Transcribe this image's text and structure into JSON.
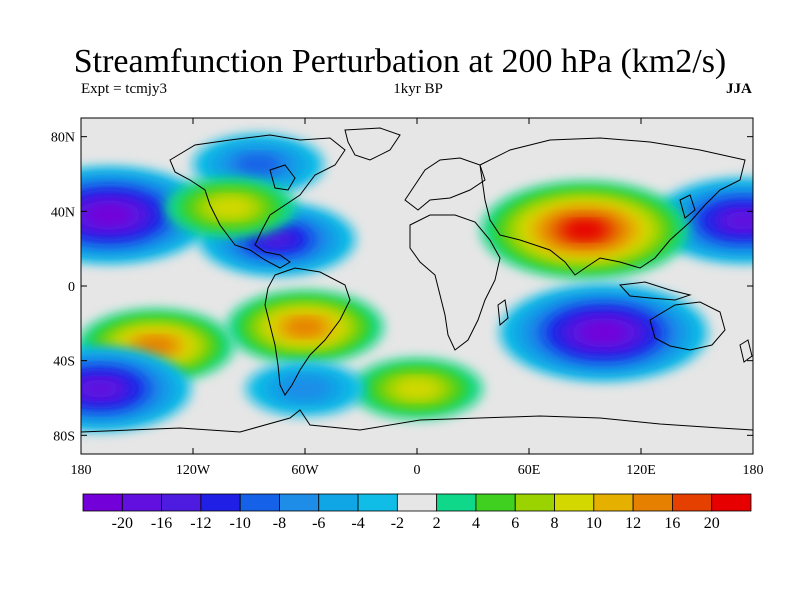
{
  "title": "Streamfunction Perturbation at 200 hPa (km2/s)",
  "subtitle_left": "Expt = tcmjy3",
  "subtitle_center": "1kyr BP",
  "subtitle_right": "JJA",
  "map_data": {
    "projection": "cylindrical-equidistant",
    "lon_range": [
      -180,
      180
    ],
    "lat_range": [
      -90,
      90
    ],
    "y_ticks": [
      {
        "lat": 80,
        "label": "80N"
      },
      {
        "lat": 40,
        "label": "40N"
      },
      {
        "lat": 0,
        "label": "0"
      },
      {
        "lat": -40,
        "label": "40S"
      },
      {
        "lat": -80,
        "label": "80S"
      }
    ],
    "x_ticks": [
      {
        "lon": -180,
        "label": "180"
      },
      {
        "lon": -120,
        "label": "120W"
      },
      {
        "lon": -60,
        "label": "60W"
      },
      {
        "lon": 0,
        "label": "0"
      },
      {
        "lon": 60,
        "label": "60E"
      },
      {
        "lon": 120,
        "label": "120E"
      },
      {
        "lon": 180,
        "label": "180"
      }
    ],
    "anomalies": [
      {
        "region": "north-pacific-low",
        "lon": -165,
        "lat": 38,
        "value": -20
      },
      {
        "region": "north-pacific-low-east",
        "lon": 175,
        "lat": 35,
        "value": -16
      },
      {
        "region": "caribbean-low",
        "lon": -75,
        "lat": 25,
        "value": -12
      },
      {
        "region": "canada-low",
        "lon": -85,
        "lat": 65,
        "value": -8
      },
      {
        "region": "asia-high",
        "lon": 90,
        "lat": 30,
        "value": 20
      },
      {
        "region": "indian-ocean-low",
        "lon": 100,
        "lat": -25,
        "value": -20
      },
      {
        "region": "south-atlantic-high",
        "lon": -60,
        "lat": -22,
        "value": 12
      },
      {
        "region": "south-pacific-high",
        "lon": -140,
        "lat": -32,
        "value": 12
      },
      {
        "region": "southern-ocean-high",
        "lon": 0,
        "lat": -55,
        "value": 8
      },
      {
        "region": "north-america-high",
        "lon": -100,
        "lat": 42,
        "value": 8
      },
      {
        "region": "south-america-low",
        "lon": -60,
        "lat": -55,
        "value": -6
      },
      {
        "region": "southeast-pacific-low",
        "lon": -170,
        "lat": -55,
        "value": -16
      }
    ]
  },
  "colorbar": {
    "colors": [
      "#7400d9",
      "#6210e0",
      "#4e1ce0",
      "#1f1fe6",
      "#1562e8",
      "#1e8de8",
      "#10a6e6",
      "#10bde6",
      "#e6e6e6",
      "#10d88a",
      "#40d020",
      "#9ad300",
      "#d3d800",
      "#e6b000",
      "#e68000",
      "#e64000",
      "#e60000"
    ],
    "labels": [
      "-20",
      "-16",
      "-12",
      "-10",
      "-8",
      "-6",
      "-4",
      "-2",
      "2",
      "4",
      "6",
      "8",
      "10",
      "12",
      "16",
      "20"
    ]
  }
}
